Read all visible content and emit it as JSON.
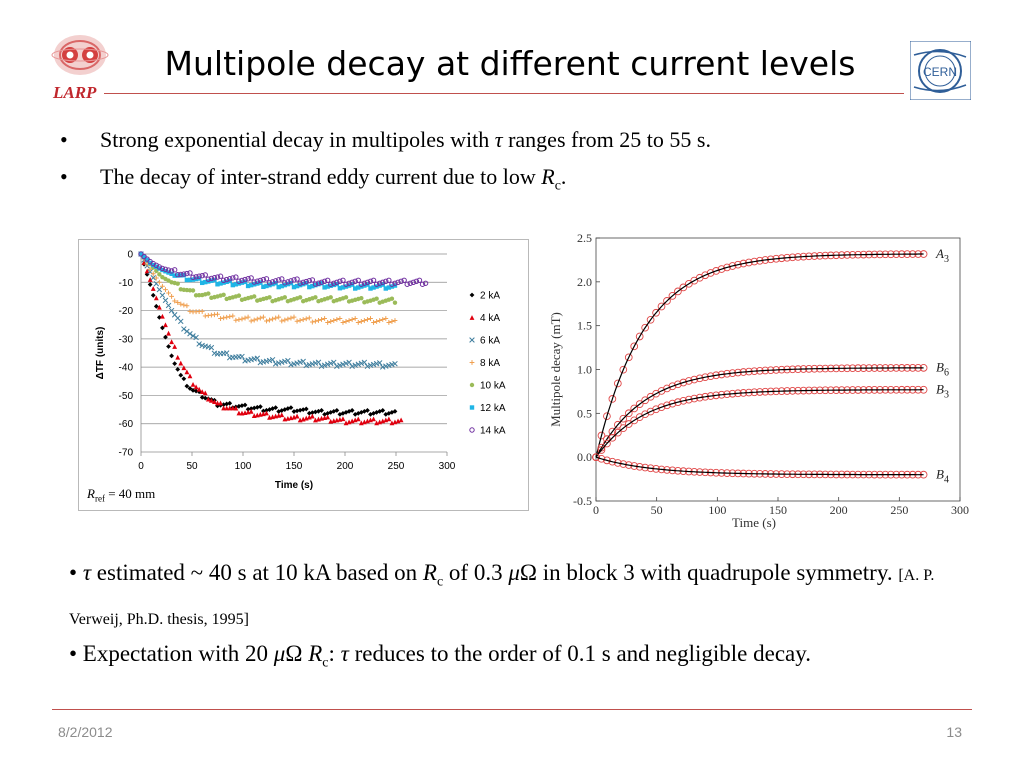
{
  "slide": {
    "title": "Multipole decay at different current levels",
    "logo_left_text": "LARP",
    "logo_right_text": "CERN",
    "date": "8/2/2012",
    "page_number": "13"
  },
  "bullets": [
    {
      "pre": "Strong exponential decay in multipoles with ",
      "tau": "τ",
      "post": " ranges from 25 to 55 s."
    },
    {
      "pre": "The decay of inter-strand eddy current due to low ",
      "r": "R",
      "sub": "c",
      "post": "."
    }
  ],
  "lower": {
    "line1_pre": "• ",
    "tau": "τ",
    "line1_a": " estimated ~ 40 s at 10 kA based on ",
    "r": "R",
    "rsub": "c",
    "line1_b": " of 0.3 ",
    "mu": "μ",
    "line1_c": "Ω in block 3 with quadrupole symmetry. ",
    "ref": "[A. P. Verweij, Ph.D. thesis, 1995]",
    "line2_pre": "• Expectation with 20 ",
    "mu2": "μ",
    "line2_a": "Ω ",
    "r2": "R",
    "rsub2": "c",
    "line2_b": ": ",
    "tau2": "τ",
    "line2_c": " reduces to the order of 0.1 s and negligible decay."
  },
  "chart_data": [
    {
      "type": "scatter",
      "xlabel": "Time (s)",
      "ylabel": "ΔTF (units)",
      "xlim": [
        0,
        300
      ],
      "ylim": [
        -70,
        0
      ],
      "xticks": [
        0,
        50,
        100,
        150,
        200,
        250,
        300
      ],
      "yticks": [
        0,
        -10,
        -20,
        -30,
        -40,
        -50,
        -60,
        -70
      ],
      "grid": "horizontal",
      "legend": "right",
      "annotation": {
        "r": "R",
        "sub": "ref",
        "rest": " = 40 mm"
      },
      "series": [
        {
          "name": "2 kA",
          "marker": "diamond",
          "color": "#000000",
          "points": [
            [
              0,
              0
            ],
            [
              10,
              -12
            ],
            [
              20,
              -25
            ],
            [
              30,
              -36
            ],
            [
              40,
              -44
            ],
            [
              50,
              -48
            ],
            [
              60,
              -50
            ],
            [
              75,
              -53
            ],
            [
              100,
              -54
            ],
            [
              125,
              -55
            ],
            [
              150,
              -55
            ],
            [
              175,
              -56
            ],
            [
              200,
              -56
            ],
            [
              225,
              -56
            ],
            [
              250,
              -56
            ]
          ]
        },
        {
          "name": "4 kA",
          "marker": "triangle",
          "color": "#e0000f",
          "points": [
            [
              0,
              0
            ],
            [
              10,
              -10
            ],
            [
              20,
              -21
            ],
            [
              30,
              -31
            ],
            [
              40,
              -39
            ],
            [
              50,
              -45
            ],
            [
              60,
              -49
            ],
            [
              75,
              -53
            ],
            [
              100,
              -56
            ],
            [
              125,
              -57
            ],
            [
              150,
              -58
            ],
            [
              175,
              -58
            ],
            [
              200,
              -59
            ],
            [
              225,
              -59
            ],
            [
              255,
              -59
            ]
          ]
        },
        {
          "name": "6 kA",
          "marker": "x",
          "color": "#3f7e9e",
          "points": [
            [
              0,
              0
            ],
            [
              10,
              -7
            ],
            [
              20,
              -14
            ],
            [
              30,
              -20
            ],
            [
              40,
              -25
            ],
            [
              50,
              -29
            ],
            [
              60,
              -32
            ],
            [
              75,
              -35
            ],
            [
              100,
              -37
            ],
            [
              125,
              -38
            ],
            [
              150,
              -38.5
            ],
            [
              175,
              -39
            ],
            [
              200,
              -39
            ],
            [
              225,
              -39
            ],
            [
              250,
              -39.5
            ]
          ]
        },
        {
          "name": "8 kA",
          "marker": "plus",
          "color": "#f0a050",
          "points": [
            [
              0,
              0
            ],
            [
              10,
              -6
            ],
            [
              20,
              -11
            ],
            [
              30,
              -15
            ],
            [
              40,
              -18
            ],
            [
              50,
              -20
            ],
            [
              60,
              -21
            ],
            [
              75,
              -22
            ],
            [
              100,
              -23
            ],
            [
              125,
              -23
            ],
            [
              150,
              -23
            ],
            [
              175,
              -23.5
            ],
            [
              200,
              -23.5
            ],
            [
              225,
              -23.5
            ],
            [
              250,
              -23.5
            ]
          ]
        },
        {
          "name": "10 kA",
          "marker": "circle-filled",
          "color": "#9bbb59",
          "points": [
            [
              0,
              0
            ],
            [
              10,
              -4
            ],
            [
              20,
              -8
            ],
            [
              30,
              -10
            ],
            [
              40,
              -12
            ],
            [
              50,
              -13.5
            ],
            [
              60,
              -14.5
            ],
            [
              75,
              -15
            ],
            [
              100,
              -15.5
            ],
            [
              125,
              -16
            ],
            [
              150,
              -16
            ],
            [
              175,
              -16
            ],
            [
              200,
              -16
            ],
            [
              225,
              -16.5
            ],
            [
              250,
              -16.5
            ]
          ]
        },
        {
          "name": "12 kA",
          "marker": "square",
          "color": "#1fb5e6",
          "points": [
            [
              0,
              0
            ],
            [
              10,
              -3.5
            ],
            [
              20,
              -5.5
            ],
            [
              30,
              -7
            ],
            [
              40,
              -8
            ],
            [
              50,
              -9
            ],
            [
              60,
              -9.5
            ],
            [
              75,
              -10
            ],
            [
              100,
              -10.5
            ],
            [
              125,
              -11
            ],
            [
              150,
              -11
            ],
            [
              175,
              -11
            ],
            [
              200,
              -11.5
            ],
            [
              225,
              -11.5
            ],
            [
              250,
              -11.5
            ]
          ]
        },
        {
          "name": "14 kA",
          "marker": "circle-open",
          "color": "#7030a0",
          "points": [
            [
              0,
              0
            ],
            [
              10,
              -3
            ],
            [
              20,
              -5
            ],
            [
              30,
              -6
            ],
            [
              40,
              -7
            ],
            [
              50,
              -7.5
            ],
            [
              60,
              -8
            ],
            [
              75,
              -8.5
            ],
            [
              100,
              -9
            ],
            [
              125,
              -9.5
            ],
            [
              150,
              -9.5
            ],
            [
              175,
              -10
            ],
            [
              200,
              -10
            ],
            [
              225,
              -10
            ],
            [
              250,
              -10
            ],
            [
              280,
              -10
            ]
          ]
        }
      ]
    },
    {
      "type": "scatter",
      "xlabel": "Time (s)",
      "ylabel": "Multipole decay (mT)",
      "xlim": [
        0,
        300
      ],
      "ylim": [
        -0.5,
        2.5
      ],
      "xticks": [
        0,
        50,
        100,
        150,
        200,
        250,
        300
      ],
      "yticks": [
        2.5,
        2.0,
        1.5,
        1.0,
        0.5,
        0.0,
        -0.5
      ],
      "ytick_labels": [
        "2.5",
        "2.0",
        "1.5",
        "1.0",
        "0.5",
        "0.0",
        "-0.5"
      ],
      "grid": false,
      "series": [
        {
          "name": "A",
          "sub": "3",
          "final": 2.32,
          "tau": 40,
          "marker": "circle-open",
          "color": "#e04848",
          "fit_color": "#000000"
        },
        {
          "name": "B",
          "sub": "6",
          "final": 1.02,
          "tau": 40,
          "marker": "circle-open",
          "color": "#e04848",
          "fit_color": "#000000"
        },
        {
          "name": "B",
          "sub": "3",
          "final": 0.77,
          "tau": 40,
          "marker": "circle-open",
          "color": "#e04848",
          "fit_color": "#000000"
        },
        {
          "name": "B",
          "sub": "4",
          "final": -0.2,
          "tau": 45,
          "marker": "circle-open",
          "color": "#e04848",
          "fit_color": "#000000"
        }
      ],
      "x_max_data": 270
    }
  ]
}
